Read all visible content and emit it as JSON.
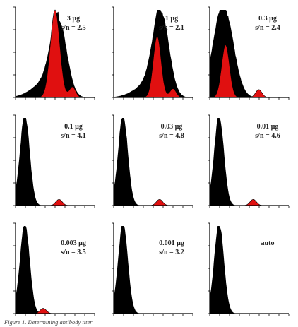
{
  "caption": "Figure 1. Determining antibody titer",
  "chart_data": {
    "type": "area",
    "grid": false,
    "legend": "none",
    "colors": {
      "negative": "#000000",
      "positive": "#e01010"
    },
    "panels": [
      {
        "dose": "3 µg",
        "ratio": "s/n = 2.5",
        "shape": {
          "neg_peak": 0.55,
          "neg_height": 0.85,
          "neg_width": 0.1,
          "neg_tail": 0.35,
          "pos_peak": 0.5,
          "pos_height": 1.0,
          "pos_width": 0.06,
          "sat_peak": 0.72,
          "sat_height": 0.12
        }
      },
      {
        "dose": "1 µg",
        "ratio": "s/n = 2.1",
        "shape": {
          "neg_peak": 0.6,
          "neg_height": 0.95,
          "neg_width": 0.1,
          "neg_tail": 0.3,
          "pos_peak": 0.55,
          "pos_height": 0.7,
          "pos_width": 0.05,
          "sat_peak": 0.75,
          "sat_height": 0.1
        }
      },
      {
        "dose": "0.3 µg",
        "ratio": "s/n = 2.4",
        "shape": {
          "neg_peak": 0.18,
          "neg_height": 1.0,
          "neg_width": 0.12,
          "neg_tail": 0.2,
          "pos_peak": 0.2,
          "pos_height": 0.6,
          "pos_width": 0.05,
          "sat_peak": 0.62,
          "sat_height": 0.09
        }
      },
      {
        "dose": "0.1 µg",
        "ratio": "s/n = 4.1",
        "shape": {
          "neg_peak": 0.12,
          "neg_height": 1.0,
          "neg_width": 0.06,
          "neg_tail": 0.1,
          "pos_peak": 0.0,
          "pos_height": 0.0,
          "pos_width": 0.05,
          "sat_peak": 0.55,
          "sat_height": 0.07
        }
      },
      {
        "dose": "0.03 µg",
        "ratio": "s/n = 4.8",
        "shape": {
          "neg_peak": 0.12,
          "neg_height": 1.0,
          "neg_width": 0.06,
          "neg_tail": 0.1,
          "pos_peak": 0.0,
          "pos_height": 0.0,
          "pos_width": 0.05,
          "sat_peak": 0.58,
          "sat_height": 0.07
        }
      },
      {
        "dose": "0.01 µg",
        "ratio": "s/n = 4.6",
        "shape": {
          "neg_peak": 0.12,
          "neg_height": 1.0,
          "neg_width": 0.06,
          "neg_tail": 0.1,
          "pos_peak": 0.0,
          "pos_height": 0.0,
          "pos_width": 0.05,
          "sat_peak": 0.55,
          "sat_height": 0.07
        }
      },
      {
        "dose": "0.003 µg",
        "ratio": "s/n = 3.5",
        "shape": {
          "neg_peak": 0.12,
          "neg_height": 1.0,
          "neg_width": 0.06,
          "neg_tail": 0.1,
          "pos_peak": 0.0,
          "pos_height": 0.0,
          "pos_width": 0.05,
          "sat_peak": 0.35,
          "sat_height": 0.06
        }
      },
      {
        "dose": "0.001 µg",
        "ratio": "s/n = 3.2",
        "shape": {
          "neg_peak": 0.12,
          "neg_height": 1.0,
          "neg_width": 0.06,
          "neg_tail": 0.1,
          "pos_peak": 0.0,
          "pos_height": 0.0,
          "pos_width": 0.05,
          "sat_peak": 0.0,
          "sat_height": 0.0
        }
      },
      {
        "dose": "auto",
        "ratio": "",
        "shape": {
          "neg_peak": 0.12,
          "neg_height": 1.0,
          "neg_width": 0.06,
          "neg_tail": 0.1,
          "pos_peak": 0.0,
          "pos_height": 0.0,
          "pos_width": 0.05,
          "sat_peak": 0.0,
          "sat_height": 0.0
        }
      }
    ]
  }
}
